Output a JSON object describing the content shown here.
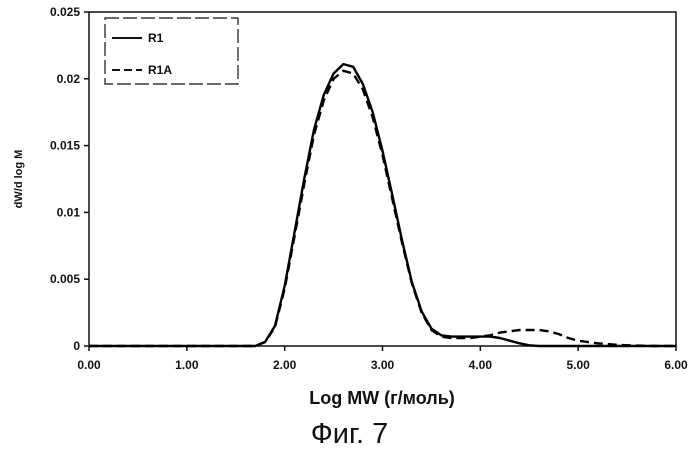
{
  "chart_data": {
    "type": "line",
    "xlabel": "Log MW (г/моль)",
    "ylabel": "dW/d log M",
    "xlim": [
      0,
      6
    ],
    "ylim": [
      0,
      0.025
    ],
    "x_ticks": [
      "0.00",
      "1.00",
      "2.00",
      "3.00",
      "4.00",
      "5.00",
      "6.00"
    ],
    "y_ticks": [
      "0",
      "0.005",
      "0.01",
      "0.015",
      "0.02",
      "0.025"
    ],
    "grid": false,
    "legend_position": "top-left",
    "series": [
      {
        "name": "R1",
        "style": "solid",
        "color": "#000000",
        "points": [
          [
            0.0,
            0
          ],
          [
            1.7,
            0
          ],
          [
            1.8,
            0.0003
          ],
          [
            1.9,
            0.0015
          ],
          [
            2.0,
            0.0045
          ],
          [
            2.1,
            0.0085
          ],
          [
            2.2,
            0.0125
          ],
          [
            2.3,
            0.0162
          ],
          [
            2.4,
            0.0188
          ],
          [
            2.5,
            0.0204
          ],
          [
            2.6,
            0.0211
          ],
          [
            2.7,
            0.0209
          ],
          [
            2.8,
            0.0196
          ],
          [
            2.9,
            0.0175
          ],
          [
            3.0,
            0.0146
          ],
          [
            3.1,
            0.0113
          ],
          [
            3.2,
            0.0079
          ],
          [
            3.3,
            0.0048
          ],
          [
            3.4,
            0.0026
          ],
          [
            3.5,
            0.0013
          ],
          [
            3.6,
            0.0008
          ],
          [
            3.7,
            0.0007
          ],
          [
            3.8,
            0.0007
          ],
          [
            3.9,
            0.0007
          ],
          [
            4.0,
            0.0007
          ],
          [
            4.1,
            0.0007
          ],
          [
            4.2,
            0.0006
          ],
          [
            4.3,
            0.0004
          ],
          [
            4.4,
            0.0002
          ],
          [
            4.5,
            5e-05
          ],
          [
            4.6,
            0
          ],
          [
            6.0,
            0
          ]
        ]
      },
      {
        "name": "R1A",
        "style": "dashed",
        "color": "#000000",
        "points": [
          [
            0.0,
            0
          ],
          [
            1.7,
            0
          ],
          [
            1.8,
            0.0003
          ],
          [
            1.9,
            0.0014
          ],
          [
            2.0,
            0.0043
          ],
          [
            2.1,
            0.0082
          ],
          [
            2.2,
            0.0121
          ],
          [
            2.3,
            0.0158
          ],
          [
            2.4,
            0.0184
          ],
          [
            2.5,
            0.02
          ],
          [
            2.6,
            0.0206
          ],
          [
            2.7,
            0.0204
          ],
          [
            2.8,
            0.0192
          ],
          [
            2.9,
            0.0171
          ],
          [
            3.0,
            0.0143
          ],
          [
            3.1,
            0.011
          ],
          [
            3.2,
            0.0077
          ],
          [
            3.3,
            0.0047
          ],
          [
            3.4,
            0.0025
          ],
          [
            3.5,
            0.0012
          ],
          [
            3.6,
            0.0007
          ],
          [
            3.7,
            0.0006
          ],
          [
            3.8,
            0.0006
          ],
          [
            3.9,
            0.0006
          ],
          [
            4.0,
            0.0007
          ],
          [
            4.1,
            0.0008
          ],
          [
            4.2,
            0.001
          ],
          [
            4.3,
            0.0011
          ],
          [
            4.4,
            0.0012
          ],
          [
            4.5,
            0.0012
          ],
          [
            4.6,
            0.0012
          ],
          [
            4.7,
            0.0011
          ],
          [
            4.8,
            0.0009
          ],
          [
            4.9,
            0.0006
          ],
          [
            5.0,
            0.0004
          ],
          [
            5.2,
            0.0002
          ],
          [
            5.4,
            8e-05
          ],
          [
            5.6,
            3e-05
          ],
          [
            5.8,
            0
          ],
          [
            6.0,
            0
          ]
        ]
      }
    ]
  },
  "caption": "Фиг. 7"
}
